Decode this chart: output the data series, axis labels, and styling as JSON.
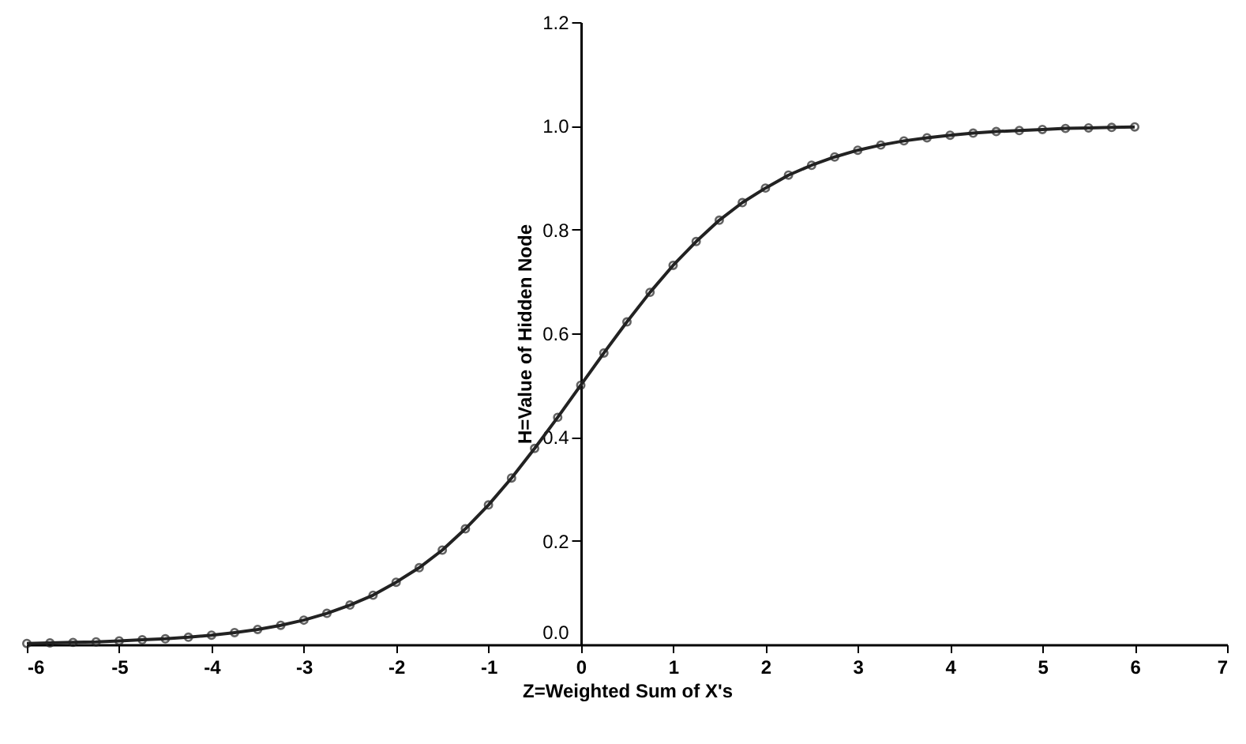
{
  "chart_data": {
    "type": "line",
    "xlabel": "Z=Weighted Sum of X's",
    "ylabel": "H=Value of Hidden Node",
    "x": [
      -6,
      -5.75,
      -5.5,
      -5.25,
      -5,
      -4.75,
      -4.5,
      -4.25,
      -4,
      -3.75,
      -3.5,
      -3.25,
      -3,
      -2.75,
      -2.5,
      -2.25,
      -2,
      -1.75,
      -1.5,
      -1.25,
      -1,
      -0.75,
      -0.5,
      -0.25,
      0,
      0.25,
      0.5,
      0.75,
      1,
      1.25,
      1.5,
      1.75,
      2,
      2.25,
      2.5,
      2.75,
      3,
      3.25,
      3.5,
      3.75,
      4,
      4.25,
      4.5,
      4.75,
      5,
      5.25,
      5.5,
      5.75,
      6
    ],
    "series": [
      {
        "color": "#222222",
        "values": [
          0.002,
          0.003,
          0.004,
          0.005,
          0.007,
          0.009,
          0.011,
          0.014,
          0.018,
          0.023,
          0.029,
          0.037,
          0.047,
          0.06,
          0.076,
          0.095,
          0.12,
          0.148,
          0.182,
          0.223,
          0.269,
          0.321,
          0.378,
          0.438,
          0.5,
          0.562,
          0.622,
          0.679,
          0.731,
          0.777,
          0.818,
          0.852,
          0.88,
          0.905,
          0.924,
          0.94,
          0.953,
          0.963,
          0.971,
          0.977,
          0.982,
          0.986,
          0.989,
          0.991,
          0.993,
          0.995,
          0.996,
          0.997,
          0.998
        ]
      }
    ],
    "xlim": [
      -6,
      7
    ],
    "xticks": [
      -6,
      -5,
      -4,
      -3,
      -2,
      -1,
      0,
      1,
      2,
      3,
      4,
      5,
      6,
      7
    ],
    "ylim": [
      0,
      1.2
    ],
    "yticks": [
      {
        "value": 0,
        "label": "0.0"
      },
      {
        "value": 0.2,
        "label": "0.2"
      },
      {
        "value": 0.4,
        "label": "0.4"
      },
      {
        "value": 0.6,
        "label": "0.6"
      },
      {
        "value": 0.8,
        "label": "0.8"
      },
      {
        "value": 1,
        "label": "1.0"
      },
      {
        "value": 1.2,
        "label": "1.2"
      }
    ],
    "marker": "circle",
    "line_style": "solid",
    "grid": false
  }
}
